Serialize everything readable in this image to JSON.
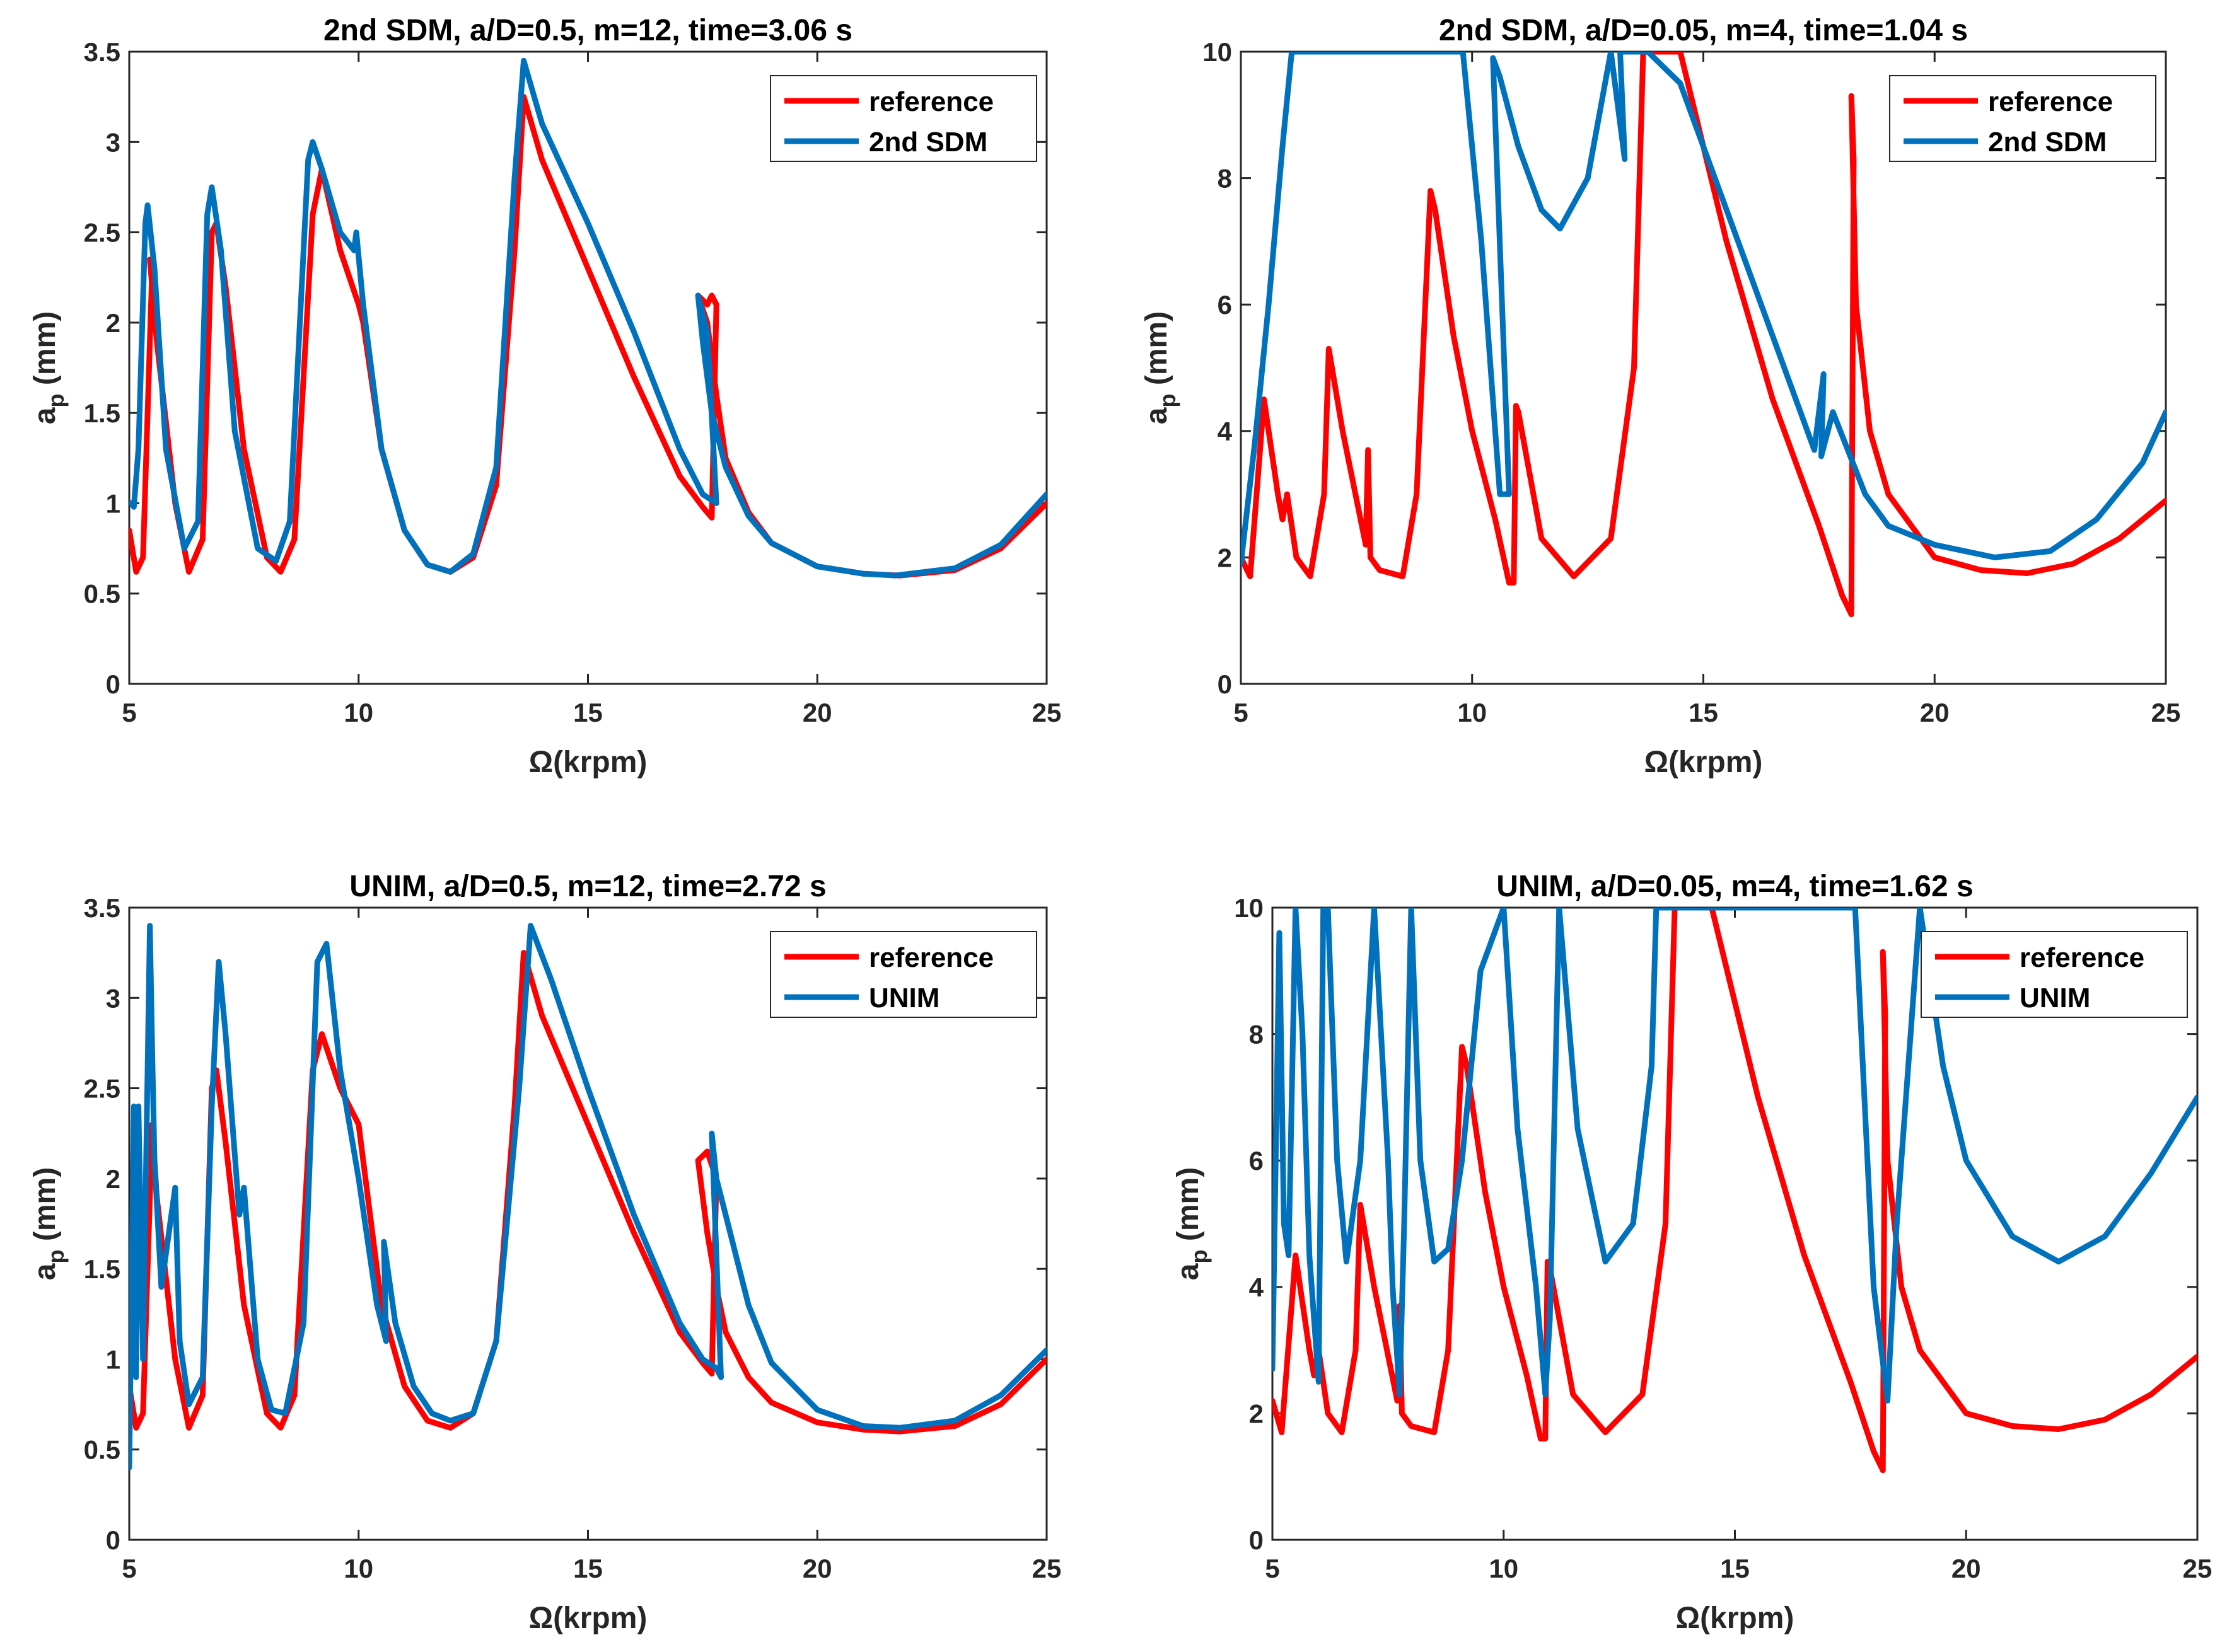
{
  "colors": {
    "reference": "#ff0000",
    "method": "#0072bd",
    "axis": "#262626",
    "background": "#ffffff"
  },
  "chart_data": [
    {
      "type": "line",
      "title": "2nd SDM, a/D=0.5, m=12, time=3.06 s",
      "xlabel": "Ω(krpm)",
      "ylabel": "a",
      "ylabel_sub": "p",
      "ylabel_unit": " (mm)",
      "xlim": [
        5,
        25
      ],
      "ylim": [
        0,
        3.5
      ],
      "xticks": [
        5,
        10,
        15,
        20,
        25
      ],
      "yticks": [
        0,
        0.5,
        1,
        1.5,
        2,
        2.5,
        3,
        3.5
      ],
      "legend": [
        "reference",
        "2nd SDM"
      ],
      "legend_position": "top-right",
      "series": [
        {
          "name": "reference",
          "color": "#ff0000",
          "x": [
            5.0,
            5.15,
            5.3,
            5.5,
            5.45,
            5.6,
            6.0,
            6.3,
            6.6,
            6.8,
            6.9,
            7.1,
            7.5,
            8.0,
            8.3,
            8.6,
            9.0,
            9.2,
            9.6,
            10.0,
            10.1,
            10.5,
            11.0,
            11.5,
            12.0,
            12.5,
            13.0,
            13.4,
            13.6,
            14.0,
            15.0,
            16.0,
            17.0,
            17.5,
            17.7,
            17.8,
            17.7,
            17.6,
            17.4,
            17.6,
            17.8,
            18.0,
            18.5,
            19.0,
            20.0,
            21.0,
            21.8,
            23.0,
            24.0,
            25.0
          ],
          "values": [
            0.85,
            0.62,
            0.7,
            2.3,
            2.35,
            1.9,
            1.0,
            0.62,
            0.8,
            2.5,
            2.55,
            2.2,
            1.3,
            0.7,
            0.62,
            0.8,
            2.6,
            2.85,
            2.4,
            2.1,
            2.0,
            1.3,
            0.85,
            0.66,
            0.62,
            0.7,
            1.1,
            2.4,
            3.25,
            2.9,
            2.3,
            1.7,
            1.15,
            0.98,
            0.92,
            2.1,
            2.15,
            2.1,
            2.15,
            2.0,
            1.6,
            1.25,
            0.95,
            0.78,
            0.65,
            0.61,
            0.6,
            0.63,
            0.75,
            1.0
          ]
        },
        {
          "name": "2nd SDM",
          "color": "#0072bd",
          "x": [
            5.05,
            5.1,
            5.2,
            5.35,
            5.4,
            5.55,
            5.8,
            6.2,
            6.5,
            6.7,
            6.8,
            7.0,
            7.3,
            7.8,
            8.2,
            8.5,
            8.9,
            9.0,
            9.2,
            9.6,
            9.9,
            9.95,
            10.1,
            10.5,
            11.0,
            11.5,
            12.0,
            12.5,
            13.0,
            13.4,
            13.6,
            14.0,
            15.0,
            16.0,
            17.0,
            17.5,
            17.8,
            17.6,
            17.4,
            17.5,
            17.7,
            18.0,
            18.5,
            19.0,
            20.0,
            21.0,
            21.7,
            23.0,
            24.0,
            25.0
          ],
          "values": [
            1.0,
            0.98,
            1.3,
            2.55,
            2.65,
            2.3,
            1.3,
            0.75,
            0.9,
            2.6,
            2.75,
            2.4,
            1.4,
            0.75,
            0.68,
            0.9,
            2.9,
            3.0,
            2.85,
            2.5,
            2.4,
            2.5,
            2.1,
            1.3,
            0.85,
            0.66,
            0.62,
            0.72,
            1.2,
            2.8,
            3.45,
            3.1,
            2.55,
            1.95,
            1.3,
            1.05,
            1.0,
            1.95,
            2.15,
            1.9,
            1.5,
            1.2,
            0.93,
            0.78,
            0.65,
            0.61,
            0.6,
            0.64,
            0.77,
            1.05
          ]
        }
      ]
    },
    {
      "type": "line",
      "title": "2nd SDM, a/D=0.05, m=4, time=1.04 s",
      "xlabel": "Ω(krpm)",
      "ylabel": "a",
      "ylabel_sub": "p",
      "ylabel_unit": " (mm)",
      "xlim": [
        5,
        25
      ],
      "ylim": [
        0,
        10
      ],
      "xticks": [
        5,
        10,
        15,
        20,
        25
      ],
      "yticks": [
        0,
        2,
        4,
        6,
        8,
        10
      ],
      "legend": [
        "reference",
        "2nd SDM"
      ],
      "legend_position": "top-right",
      "series": [
        {
          "name": "reference",
          "color": "#ff0000",
          "x": [
            5.0,
            5.2,
            5.5,
            5.8,
            5.9,
            6.0,
            6.2,
            6.5,
            6.8,
            6.9,
            7.2,
            7.7,
            7.75,
            7.8,
            8.0,
            8.5,
            8.8,
            9.1,
            9.2,
            9.6,
            10.0,
            10.5,
            10.8,
            10.9,
            10.95,
            11.0,
            11.5,
            12.2,
            13.0,
            13.5,
            13.7,
            14.5,
            15.5,
            16.5,
            17.5,
            18.0,
            18.2,
            18.25,
            18.2,
            18.3,
            18.6,
            19.0,
            20.0,
            21.0,
            22.0,
            23.0,
            24.0,
            25.0
          ],
          "values": [
            2.0,
            1.7,
            4.5,
            3.0,
            2.6,
            3.0,
            2.0,
            1.7,
            3.0,
            5.3,
            4.0,
            2.2,
            3.7,
            2.0,
            1.8,
            1.7,
            3.0,
            7.8,
            7.5,
            5.5,
            4.0,
            2.6,
            1.6,
            1.6,
            4.4,
            4.3,
            2.3,
            1.7,
            2.3,
            5.0,
            10.0,
            10.0,
            7.0,
            4.5,
            2.5,
            1.4,
            1.1,
            8.3,
            9.3,
            6.0,
            4.0,
            3.0,
            2.0,
            1.8,
            1.75,
            1.9,
            2.3,
            2.9
          ]
        },
        {
          "name": "2nd SDM",
          "color": "#0072bd",
          "x": [
            5.0,
            5.3,
            5.6,
            5.9,
            6.1,
            9.8,
            10.2,
            10.5,
            10.6,
            10.8,
            10.45,
            10.6,
            11.0,
            11.5,
            11.9,
            12.5,
            13.0,
            13.3,
            13.2,
            13.8,
            14.5,
            15.5,
            16.5,
            17.4,
            17.6,
            17.55,
            17.8,
            18.5,
            19.0,
            20.0,
            21.3,
            22.5,
            23.5,
            24.5,
            25.0
          ],
          "values": [
            1.9,
            3.8,
            6.0,
            8.5,
            10.0,
            10.0,
            7.0,
            4.0,
            3.0,
            3.0,
            9.9,
            9.6,
            8.5,
            7.5,
            7.2,
            8.0,
            10.0,
            8.3,
            10.0,
            10.0,
            9.5,
            7.5,
            5.5,
            3.7,
            4.9,
            3.6,
            4.3,
            3.0,
            2.5,
            2.2,
            2.0,
            2.1,
            2.6,
            3.5,
            4.3
          ]
        }
      ]
    },
    {
      "type": "line",
      "title": "UNIM, a/D=0.5, m=12, time=2.72 s",
      "xlabel": "Ω(krpm)",
      "ylabel": "a",
      "ylabel_sub": "p",
      "ylabel_unit": " (mm)",
      "xlim": [
        5,
        25
      ],
      "ylim": [
        0,
        3.5
      ],
      "xticks": [
        5,
        10,
        15,
        20,
        25
      ],
      "yticks": [
        0,
        0.5,
        1,
        1.5,
        2,
        2.5,
        3,
        3.5
      ],
      "legend": [
        "reference",
        "UNIM"
      ],
      "legend_position": "top-right",
      "series": [
        {
          "name": "reference",
          "color": "#ff0000",
          "x": [
            5.0,
            5.15,
            5.3,
            5.5,
            5.6,
            6.0,
            6.3,
            6.6,
            6.8,
            6.9,
            7.1,
            7.5,
            8.0,
            8.3,
            8.6,
            9.0,
            9.2,
            9.6,
            10.0,
            10.1,
            10.5,
            11.0,
            11.5,
            12.0,
            12.5,
            13.0,
            13.4,
            13.6,
            14.0,
            15.0,
            16.0,
            17.0,
            17.5,
            17.7,
            17.8,
            17.6,
            17.4,
            17.6,
            17.8,
            18.0,
            18.5,
            19.0,
            20.0,
            21.0,
            21.8,
            23.0,
            24.0,
            25.0
          ],
          "values": [
            0.85,
            0.62,
            0.7,
            2.3,
            1.9,
            1.0,
            0.62,
            0.8,
            2.5,
            2.6,
            2.2,
            1.3,
            0.7,
            0.62,
            0.8,
            2.6,
            2.8,
            2.5,
            2.3,
            2.1,
            1.3,
            0.85,
            0.66,
            0.62,
            0.7,
            1.1,
            2.4,
            3.25,
            2.9,
            2.3,
            1.7,
            1.15,
            0.98,
            0.92,
            2.0,
            2.15,
            2.1,
            1.7,
            1.4,
            1.15,
            0.9,
            0.76,
            0.65,
            0.61,
            0.6,
            0.63,
            0.75,
            1.0
          ]
        },
        {
          "name": "UNIM",
          "color": "#0072bd",
          "x": [
            5.0,
            5.1,
            5.15,
            5.2,
            5.3,
            5.45,
            5.5,
            5.55,
            5.7,
            6.0,
            6.1,
            6.3,
            6.6,
            6.8,
            6.95,
            7.1,
            7.4,
            7.5,
            7.8,
            8.1,
            8.4,
            8.8,
            9.1,
            9.3,
            9.6,
            10.0,
            10.4,
            10.6,
            10.55,
            10.8,
            11.2,
            11.6,
            12.0,
            12.5,
            13.0,
            13.5,
            13.75,
            14.2,
            15.0,
            16.0,
            17.0,
            17.5,
            17.8,
            17.9,
            17.7,
            17.8,
            18.0,
            18.5,
            19.0,
            20.0,
            21.0,
            21.8,
            23.0,
            24.0,
            25.0
          ],
          "values": [
            0.4,
            2.4,
            0.9,
            2.4,
            1.0,
            3.4,
            2.7,
            2.1,
            1.4,
            1.95,
            1.1,
            0.75,
            0.9,
            2.4,
            3.2,
            2.8,
            1.8,
            1.95,
            1.0,
            0.72,
            0.7,
            1.2,
            3.2,
            3.3,
            2.6,
            2.0,
            1.3,
            1.1,
            1.65,
            1.2,
            0.85,
            0.7,
            0.66,
            0.7,
            1.1,
            2.5,
            3.4,
            3.1,
            2.5,
            1.8,
            1.2,
            1.0,
            0.95,
            0.9,
            2.25,
            2.0,
            1.8,
            1.3,
            0.98,
            0.72,
            0.63,
            0.62,
            0.66,
            0.8,
            1.05
          ]
        }
      ]
    },
    {
      "type": "line",
      "title": "UNIM, a/D=0.05, m=4, time=1.62 s",
      "xlabel": "Ω(krpm)",
      "ylabel": "a",
      "ylabel_sub": "p",
      "ylabel_unit": " (mm)",
      "xlim": [
        5,
        25
      ],
      "ylim": [
        0,
        10
      ],
      "xticks": [
        5,
        10,
        15,
        20,
        25
      ],
      "yticks": [
        0,
        2,
        4,
        6,
        8,
        10
      ],
      "legend": [
        "reference",
        "UNIM"
      ],
      "legend_position": "top-right",
      "series": [
        {
          "name": "reference",
          "color": "#ff0000",
          "x": [
            5.0,
            5.2,
            5.5,
            5.8,
            5.9,
            6.0,
            6.2,
            6.5,
            6.8,
            6.9,
            7.2,
            7.7,
            7.75,
            7.8,
            8.0,
            8.5,
            8.8,
            9.1,
            9.2,
            9.6,
            10.0,
            10.5,
            10.8,
            10.9,
            10.95,
            11.0,
            11.5,
            12.2,
            13.0,
            13.5,
            13.7,
            14.5,
            15.5,
            16.5,
            17.5,
            18.0,
            18.2,
            18.25,
            18.2,
            18.3,
            18.6,
            19.0,
            20.0,
            21.0,
            22.0,
            23.0,
            24.0,
            25.0
          ],
          "values": [
            2.2,
            1.7,
            4.5,
            3.0,
            2.6,
            3.0,
            2.0,
            1.7,
            3.0,
            5.3,
            4.0,
            2.2,
            3.7,
            2.0,
            1.8,
            1.7,
            3.0,
            7.8,
            7.5,
            5.5,
            4.0,
            2.6,
            1.6,
            1.6,
            4.4,
            4.3,
            2.3,
            1.7,
            2.3,
            5.0,
            10.0,
            10.0,
            7.0,
            4.5,
            2.5,
            1.4,
            1.1,
            8.3,
            9.3,
            6.0,
            4.0,
            3.0,
            2.0,
            1.8,
            1.75,
            1.9,
            2.3,
            2.9
          ]
        },
        {
          "name": "UNIM",
          "color": "#0072bd",
          "x": [
            5.0,
            5.15,
            5.25,
            5.35,
            5.5,
            5.65,
            5.8,
            6.0,
            6.1,
            6.2,
            6.4,
            6.6,
            6.9,
            7.2,
            7.5,
            7.6,
            7.75,
            7.85,
            8.0,
            8.2,
            8.5,
            8.8,
            9.1,
            9.5,
            10.0,
            10.3,
            10.7,
            10.9,
            11.0,
            11.2,
            11.6,
            12.2,
            12.8,
            13.2,
            13.3,
            17.6,
            18.0,
            18.3,
            18.5,
            19.0,
            19.5,
            20.0,
            21.0,
            22.0,
            23.0,
            24.0,
            25.0
          ],
          "values": [
            2.7,
            9.6,
            5.0,
            4.5,
            10.0,
            8.0,
            4.5,
            2.5,
            10.0,
            10.0,
            6.0,
            4.4,
            6.0,
            10.0,
            6.0,
            4.0,
            2.3,
            5.0,
            10.0,
            6.0,
            4.4,
            4.6,
            6.0,
            9.0,
            10.0,
            6.5,
            4.0,
            2.3,
            3.5,
            10.0,
            6.5,
            4.4,
            5.0,
            7.5,
            10.0,
            10.0,
            4.0,
            2.2,
            5.0,
            10.0,
            7.5,
            6.0,
            4.8,
            4.4,
            4.8,
            5.8,
            7.0
          ]
        }
      ]
    }
  ]
}
